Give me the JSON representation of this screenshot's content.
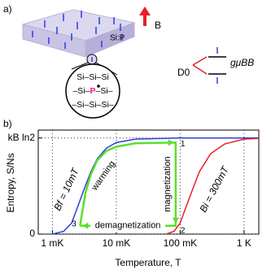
{
  "panel_a": {
    "label": "a)",
    "material": "Si:P",
    "field": "B",
    "lattice_rows": [
      [
        "Si–Si–Si"
      ],
      [
        "–Si–",
        "P",
        "–Si–"
      ],
      [
        "–Si–Si–Si–"
      ]
    ],
    "level": "D0",
    "splitting": "gμBB"
  },
  "panel_b": {
    "label": "b)"
  },
  "chart_data": {
    "type": "line",
    "xlabel": "Temperature, T",
    "ylabel": "Entropy, S/Ns",
    "xscale": "log",
    "xlim": [
      0.6,
      1700
    ],
    "ylim": [
      0,
      0.75
    ],
    "xticks": [
      {
        "value": 1,
        "label": "1 mK"
      },
      {
        "value": 10,
        "label": "10 mK"
      },
      {
        "value": 100,
        "label": "100 mK"
      },
      {
        "value": 1000,
        "label": "1 K"
      }
    ],
    "yticks": [
      0,
      {
        "value": 0.693,
        "label": "kB ln2"
      }
    ],
    "grid": true,
    "series": [
      {
        "name": "Bf = 10mT",
        "color": "#2a3fe0",
        "x": [
          1,
          1.5,
          2,
          2.5,
          3,
          4,
          5,
          7,
          10,
          20,
          100,
          1700
        ],
        "values": [
          0.0,
          0.02,
          0.08,
          0.2,
          0.3,
          0.45,
          0.54,
          0.62,
          0.66,
          0.685,
          0.693,
          0.693
        ]
      },
      {
        "name": "Bi = 300mT",
        "color": "#e8202a",
        "x": [
          60,
          80,
          100,
          120,
          150,
          200,
          300,
          500,
          1000,
          1700
        ],
        "values": [
          0.0,
          0.02,
          0.08,
          0.18,
          0.3,
          0.45,
          0.58,
          0.65,
          0.685,
          0.69
        ]
      },
      {
        "color": "#5ae02a",
        "x": [
          2.7,
          3.3,
          4,
          5,
          7,
          10,
          20,
          85,
          85,
          2.7
        ],
        "values": [
          0.06,
          0.3,
          0.43,
          0.53,
          0.6,
          0.63,
          0.655,
          0.66,
          0.06,
          0.06
        ]
      }
    ],
    "annotations": [
      "warming",
      "magnetization",
      "demagnetization",
      "1",
      "2",
      "3"
    ]
  }
}
